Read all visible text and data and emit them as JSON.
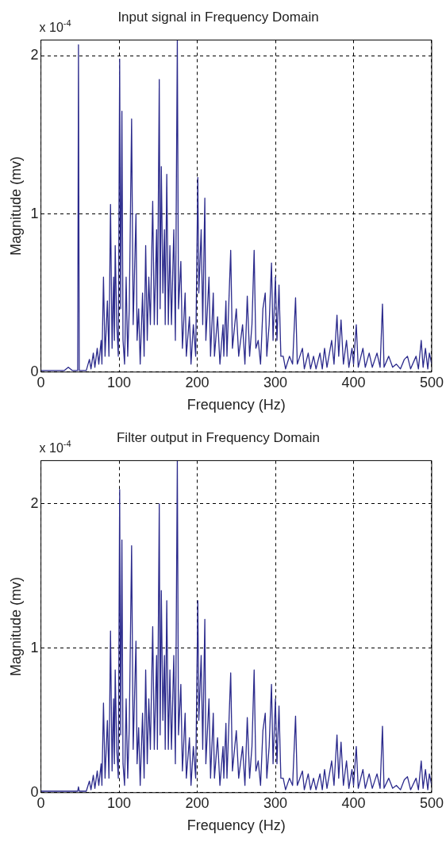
{
  "chart_data": [
    {
      "type": "line",
      "title": "Input signal in Frequency Domain",
      "xlabel": "Frequency (Hz)",
      "ylabel": "Magnitude (mv)",
      "annotations": [
        "x 10$^{-4}$"
      ],
      "color": "#2b2a8c",
      "xlim": [
        0,
        500
      ],
      "xticks": [
        0,
        100,
        200,
        300,
        400,
        500
      ],
      "ylim": [
        0,
        2.1
      ],
      "yticks": [
        0,
        1,
        2
      ],
      "grid": true,
      "x": [
        0,
        30,
        35,
        40,
        47,
        48,
        49,
        58,
        62,
        64,
        67,
        69,
        72,
        74,
        77,
        78,
        80,
        82,
        85,
        87,
        89,
        91,
        93,
        94,
        95,
        97,
        99,
        100.7,
        102,
        103.6,
        105,
        107,
        109,
        111,
        113,
        116,
        118,
        121.6,
        123,
        125,
        127,
        130,
        132,
        134,
        136,
        138,
        140,
        143,
        145,
        148,
        149,
        151.4,
        152.5,
        154,
        156,
        158,
        159,
        161,
        163,
        165,
        167,
        170,
        172,
        174.5,
        176,
        179,
        181,
        184.5,
        186,
        190,
        192,
        195,
        198,
        200.7,
        202,
        205,
        207,
        209.7,
        211,
        215,
        217,
        220.5,
        222,
        226,
        229,
        233,
        234,
        236.7,
        238,
        242.8,
        245,
        250,
        253,
        258,
        261,
        264,
        267,
        270,
        272.8,
        275,
        278,
        281,
        284,
        287,
        289,
        292,
        295,
        297,
        300,
        302,
        304.6,
        307,
        310,
        313,
        318,
        322,
        325.8,
        328,
        334.6,
        337,
        342,
        345,
        348.8,
        352,
        357,
        360,
        362.9,
        366,
        372,
        375,
        378.8,
        381,
        384,
        387,
        391,
        394,
        398,
        400,
        403.5,
        406,
        412,
        415,
        420,
        424,
        430,
        434,
        437,
        439,
        445,
        450,
        454.8,
        460,
        465,
        469,
        473,
        480,
        483,
        486.6,
        489,
        492,
        495,
        497,
        500
      ],
      "values": [
        0.01,
        0.01,
        0.03,
        0.01,
        0.01,
        2.07,
        0.01,
        0.01,
        0.08,
        0.02,
        0.12,
        0.03,
        0.15,
        0.05,
        0.2,
        0.05,
        0.6,
        0.1,
        0.45,
        0.1,
        1.06,
        0.15,
        0.6,
        0.2,
        0.8,
        0.3,
        0.1,
        1.98,
        0.4,
        1.65,
        0.2,
        0.05,
        0.6,
        0.1,
        0.4,
        1.6,
        0.3,
        1.0,
        0.2,
        0.4,
        0.05,
        0.5,
        0.1,
        0.8,
        0.2,
        0.6,
        0.3,
        1.08,
        0.3,
        0.9,
        0.3,
        1.85,
        0.4,
        1.3,
        0.5,
        0.9,
        0.3,
        1.25,
        0.3,
        0.8,
        0.3,
        0.9,
        0.2,
        2.1,
        0.4,
        0.7,
        0.15,
        0.5,
        0.1,
        0.35,
        0.05,
        0.3,
        0.1,
        1.23,
        0.5,
        0.9,
        0.3,
        1.1,
        0.2,
        0.6,
        0.1,
        0.5,
        0.1,
        0.35,
        0.05,
        0.3,
        0.1,
        0.45,
        0.1,
        0.77,
        0.15,
        0.4,
        0.1,
        0.3,
        0.05,
        0.48,
        0.1,
        0.3,
        0.77,
        0.15,
        0.2,
        0.05,
        0.4,
        0.5,
        0.1,
        0.3,
        0.69,
        0.2,
        0.6,
        0.2,
        0.55,
        0.1,
        0.1,
        0.02,
        0.1,
        0.05,
        0.47,
        0.05,
        0.15,
        0.02,
        0.12,
        0.02,
        0.1,
        0.02,
        0.12,
        0.02,
        0.15,
        0.03,
        0.2,
        0.05,
        0.36,
        0.1,
        0.33,
        0.05,
        0.2,
        0.03,
        0.15,
        0.05,
        0.3,
        0.03,
        0.15,
        0.03,
        0.12,
        0.03,
        0.12,
        0.03,
        0.43,
        0.03,
        0.1,
        0.03,
        0.05,
        0.02,
        0.08,
        0.1,
        0.02,
        0.1,
        0.02,
        0.2,
        0.03,
        0.15,
        0.02,
        0.12,
        0.05
      ]
    },
    {
      "type": "line",
      "title": "Filter output in Frequency Domain",
      "xlabel": "Frequency (Hz)",
      "ylabel": "Magnitude (mv)",
      "annotations": [
        "x 10$^{-4}$"
      ],
      "color": "#2b2a8c",
      "xlim": [
        0,
        500
      ],
      "xticks": [
        0,
        100,
        200,
        300,
        400,
        500
      ],
      "ylim": [
        0,
        2.3
      ],
      "yticks": [
        0,
        1,
        2
      ],
      "grid": true,
      "x": [
        0,
        30,
        35,
        40,
        47,
        48,
        49,
        58,
        62,
        64,
        67,
        69,
        72,
        74,
        77,
        78,
        80,
        82,
        85,
        87,
        89,
        91,
        93,
        94,
        95,
        97,
        99,
        100.7,
        102,
        103.6,
        105,
        107,
        109,
        111,
        113,
        116,
        118,
        121.6,
        123,
        125,
        127,
        130,
        132,
        134,
        136,
        138,
        140,
        143,
        145,
        148,
        149,
        151.4,
        152.5,
        154,
        156,
        158,
        159,
        161,
        163,
        165,
        167,
        170,
        172,
        174.5,
        176,
        179,
        181,
        184.5,
        186,
        190,
        192,
        195,
        198,
        200.7,
        202,
        205,
        207,
        209.7,
        211,
        215,
        217,
        220.5,
        222,
        226,
        229,
        233,
        234,
        236.7,
        238,
        242.8,
        245,
        250,
        253,
        258,
        261,
        264,
        267,
        270,
        272.8,
        275,
        278,
        281,
        284,
        287,
        289,
        292,
        295,
        297,
        300,
        302,
        304.6,
        307,
        310,
        313,
        318,
        322,
        325.8,
        328,
        334.6,
        337,
        342,
        345,
        348.8,
        352,
        357,
        360,
        362.9,
        366,
        372,
        375,
        378.8,
        381,
        384,
        387,
        391,
        394,
        398,
        400,
        403.5,
        406,
        412,
        415,
        420,
        424,
        430,
        434,
        437,
        439,
        445,
        450,
        454.8,
        460,
        465,
        469,
        473,
        480,
        483,
        486.6,
        489,
        492,
        495,
        497,
        500
      ],
      "values": [
        0.01,
        0.01,
        0.01,
        0.01,
        0.01,
        0.04,
        0.01,
        0.01,
        0.08,
        0.02,
        0.12,
        0.03,
        0.15,
        0.05,
        0.2,
        0.05,
        0.62,
        0.1,
        0.5,
        0.1,
        1.12,
        0.15,
        0.65,
        0.2,
        0.85,
        0.3,
        0.1,
        2.1,
        0.4,
        1.75,
        0.2,
        0.05,
        0.65,
        0.1,
        0.45,
        1.71,
        0.3,
        1.05,
        0.2,
        0.45,
        0.05,
        0.55,
        0.1,
        0.85,
        0.2,
        0.65,
        0.3,
        1.15,
        0.3,
        0.95,
        0.3,
        2.0,
        0.4,
        1.4,
        0.5,
        0.95,
        0.3,
        1.33,
        0.3,
        0.85,
        0.3,
        0.95,
        0.2,
        2.3,
        0.4,
        0.75,
        0.15,
        0.55,
        0.1,
        0.38,
        0.05,
        0.32,
        0.1,
        1.33,
        0.5,
        0.95,
        0.3,
        1.2,
        0.2,
        0.65,
        0.1,
        0.55,
        0.1,
        0.38,
        0.05,
        0.32,
        0.1,
        0.48,
        0.1,
        0.83,
        0.15,
        0.43,
        0.1,
        0.32,
        0.05,
        0.52,
        0.1,
        0.32,
        0.85,
        0.15,
        0.22,
        0.05,
        0.43,
        0.55,
        0.1,
        0.32,
        0.75,
        0.2,
        0.65,
        0.2,
        0.6,
        0.1,
        0.1,
        0.02,
        0.1,
        0.05,
        0.53,
        0.05,
        0.15,
        0.02,
        0.13,
        0.02,
        0.1,
        0.02,
        0.13,
        0.02,
        0.16,
        0.03,
        0.22,
        0.05,
        0.4,
        0.1,
        0.35,
        0.05,
        0.22,
        0.03,
        0.16,
        0.05,
        0.32,
        0.03,
        0.16,
        0.03,
        0.13,
        0.03,
        0.13,
        0.03,
        0.46,
        0.03,
        0.1,
        0.03,
        0.05,
        0.02,
        0.09,
        0.11,
        0.02,
        0.1,
        0.02,
        0.22,
        0.03,
        0.16,
        0.02,
        0.13,
        0.05
      ]
    }
  ]
}
